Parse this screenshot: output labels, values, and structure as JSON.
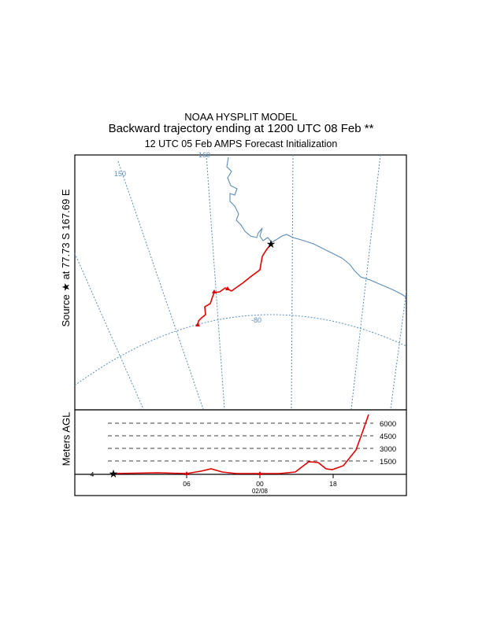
{
  "header": {
    "line1": "NOAA HYSPLIT MODEL",
    "line2": "Backward trajectory ending at 1200 UTC 08 Feb **",
    "line3": "12 UTC 05 Feb    AMPS  Forecast Initialization"
  },
  "source_label": "Source ★ at  77.73 S  167.69 E",
  "map": {
    "meridian_labels": [
      "150",
      "160"
    ],
    "parallel_labels": [
      "-80"
    ],
    "coast_color": "#5b8db8",
    "grid_color": "#5b8db8",
    "trajectory_color": "#e00000"
  },
  "height_panel": {
    "ylabel": "Meters AGL",
    "levels": [
      "6000",
      "4500",
      "3000",
      "1500"
    ],
    "time_ticks": [
      "06",
      "00",
      "18"
    ],
    "date_label": "02/08",
    "left_marker": "4"
  }
}
